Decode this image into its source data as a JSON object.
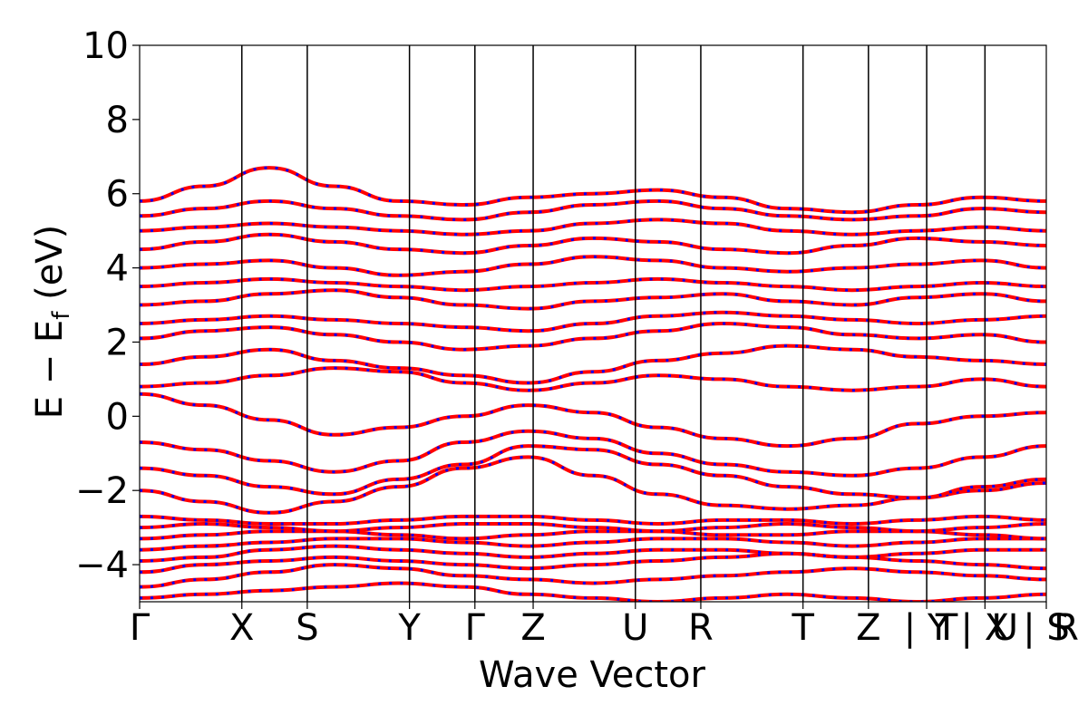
{
  "chart_data": {
    "type": "line",
    "title": "",
    "xlabel": "Wave Vector",
    "ylabel_main": "E − E",
    "ylabel_sub": "f",
    "ylabel_unit": " (eV)",
    "ylim": [
      -5,
      10
    ],
    "yticks": [
      -4,
      -2,
      0,
      2,
      4,
      6,
      8,
      10
    ],
    "ytick_labels": [
      "−4",
      "−2",
      "0",
      "2",
      "4",
      "6",
      "8",
      "10"
    ],
    "xlim": [
      0,
      8.87
    ],
    "grid": false,
    "legend": "none",
    "colors": {
      "main": "#ff0000",
      "overlay": "#0000ff"
    },
    "kpath": [
      {
        "label": "Γ",
        "x": 0.0
      },
      {
        "label": "X",
        "x": 1.0
      },
      {
        "label": "S",
        "x": 1.64
      },
      {
        "label": "Y",
        "x": 2.64
      },
      {
        "label": "Γ",
        "x": 3.28
      },
      {
        "label": "Z",
        "x": 3.85
      },
      {
        "label": "U",
        "x": 4.85
      },
      {
        "label": "R",
        "x": 5.49
      },
      {
        "label": "T",
        "x": 6.49
      },
      {
        "label": "Z",
        "x": 7.13
      },
      {
        "label": "| Y",
        "x": 7.7
      },
      {
        "label": "| X",
        "x": 8.27
      },
      {
        "label": "| S",
        "x": 8.87
      }
    ],
    "extra_labels": [
      {
        "label": "T",
        "x": 7.7
      },
      {
        "label": "U",
        "x": 8.27
      },
      {
        "label": "R",
        "x": 8.87
      }
    ],
    "segment_breaks": [
      7.13,
      7.7,
      8.27
    ],
    "bands": [
      [
        -4.9,
        -4.8,
        -4.7,
        -4.6,
        -4.5,
        -4.6,
        -4.8,
        -4.9,
        -5.0,
        -4.9,
        -4.8,
        -4.9,
        -5.0,
        -4.9,
        -4.8
      ],
      [
        -4.6,
        -4.4,
        -4.2,
        -4.0,
        -4.1,
        -4.3,
        -4.4,
        -4.5,
        -4.4,
        -4.3,
        -4.2,
        -4.1,
        -4.2,
        -4.3,
        -4.4
      ],
      [
        -4.2,
        -4.0,
        -3.9,
        -3.8,
        -3.9,
        -4.0,
        -4.1,
        -4.0,
        -3.9,
        -3.8,
        -3.7,
        -3.8,
        -3.9,
        -4.0,
        -4.1
      ],
      [
        -3.9,
        -3.8,
        -3.6,
        -3.5,
        -3.6,
        -3.7,
        -3.8,
        -3.7,
        -3.6,
        -3.6,
        -3.7,
        -3.8,
        -3.7,
        -3.6,
        -3.6
      ],
      [
        -3.6,
        -3.5,
        -3.4,
        -3.3,
        -3.3,
        -3.4,
        -3.5,
        -3.4,
        -3.3,
        -3.3,
        -3.4,
        -3.5,
        -3.4,
        -3.3,
        -3.3
      ],
      [
        -3.3,
        -3.2,
        -3.1,
        -3.1,
        -3.2,
        -3.3,
        -3.2,
        -3.1,
        -3.1,
        -3.2,
        -3.2,
        -3.1,
        -3.1,
        -3.2,
        -3.3
      ],
      [
        -3.0,
        -2.9,
        -3.0,
        -3.1,
        -3.0,
        -2.9,
        -2.9,
        -3.0,
        -3.1,
        -3.0,
        -2.9,
        -3.0,
        -3.1,
        -3.0,
        -2.9
      ],
      [
        -2.7,
        -2.8,
        -2.9,
        -2.9,
        -2.8,
        -2.7,
        -2.7,
        -2.8,
        -2.9,
        -2.8,
        -2.8,
        -2.9,
        -2.8,
        -2.7,
        -2.8
      ],
      [
        -2.0,
        -2.3,
        -2.6,
        -2.3,
        -1.9,
        -1.4,
        -1.1,
        -1.6,
        -2.1,
        -2.4,
        -2.5,
        -2.4,
        -2.2,
        -2.0,
        -1.8
      ],
      [
        -1.4,
        -1.6,
        -1.9,
        -2.1,
        -1.7,
        -1.3,
        -0.8,
        -0.9,
        -1.3,
        -1.6,
        -1.9,
        -2.1,
        -2.2,
        -1.9,
        -1.7
      ],
      [
        -0.7,
        -0.9,
        -1.2,
        -1.5,
        -1.2,
        -0.7,
        -0.4,
        -0.6,
        -1.0,
        -1.3,
        -1.5,
        -1.6,
        -1.4,
        -1.1,
        -0.8
      ],
      [
        0.6,
        0.3,
        -0.1,
        -0.5,
        -0.3,
        0.0,
        0.3,
        0.1,
        -0.3,
        -0.6,
        -0.8,
        -0.6,
        -0.2,
        0.0,
        0.1
      ],
      [
        0.8,
        0.9,
        1.1,
        1.3,
        1.2,
        0.9,
        0.7,
        0.9,
        1.1,
        1.0,
        0.8,
        0.7,
        0.8,
        1.0,
        0.8
      ],
      [
        1.4,
        1.6,
        1.8,
        1.5,
        1.3,
        1.1,
        0.9,
        1.2,
        1.5,
        1.7,
        1.9,
        1.8,
        1.6,
        1.5,
        1.4
      ],
      [
        2.1,
        2.3,
        2.4,
        2.2,
        2.0,
        1.8,
        1.9,
        2.1,
        2.3,
        2.5,
        2.4,
        2.2,
        2.1,
        2.2,
        2.0
      ],
      [
        2.5,
        2.6,
        2.7,
        2.6,
        2.5,
        2.4,
        2.3,
        2.5,
        2.7,
        2.8,
        2.7,
        2.6,
        2.5,
        2.6,
        2.7
      ],
      [
        3.0,
        3.1,
        3.3,
        3.4,
        3.2,
        3.0,
        2.9,
        3.1,
        3.2,
        3.3,
        3.1,
        3.0,
        3.2,
        3.3,
        3.1
      ],
      [
        3.5,
        3.6,
        3.7,
        3.6,
        3.5,
        3.4,
        3.5,
        3.6,
        3.7,
        3.6,
        3.5,
        3.4,
        3.5,
        3.6,
        3.5
      ],
      [
        4.0,
        4.1,
        4.2,
        4.0,
        3.8,
        3.9,
        4.1,
        4.3,
        4.2,
        4.0,
        3.9,
        4.0,
        4.1,
        4.2,
        4.0
      ],
      [
        4.5,
        4.7,
        4.9,
        4.7,
        4.5,
        4.4,
        4.6,
        4.8,
        4.7,
        4.5,
        4.4,
        4.6,
        4.8,
        4.7,
        4.6
      ],
      [
        5.0,
        5.1,
        5.2,
        5.1,
        5.0,
        4.9,
        5.0,
        5.2,
        5.3,
        5.2,
        5.0,
        4.9,
        5.0,
        5.1,
        5.0
      ],
      [
        5.4,
        5.6,
        5.8,
        5.6,
        5.4,
        5.3,
        5.5,
        5.7,
        5.8,
        5.6,
        5.4,
        5.3,
        5.4,
        5.6,
        5.5
      ],
      [
        5.8,
        6.2,
        6.7,
        6.2,
        5.8,
        5.7,
        5.9,
        6.0,
        6.1,
        5.9,
        5.6,
        5.5,
        5.7,
        5.9,
        5.8
      ]
    ]
  }
}
